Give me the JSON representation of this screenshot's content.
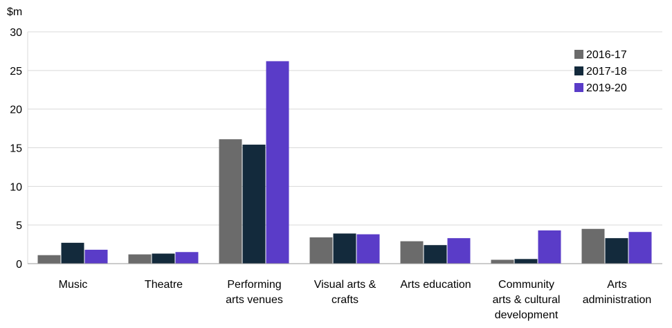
{
  "chart_data": {
    "type": "bar",
    "ylabel": "$m",
    "ylim": [
      0,
      30
    ],
    "yticks": [
      0,
      5,
      10,
      15,
      20,
      25,
      30
    ],
    "grid": true,
    "legend_position": "top-right",
    "categories": [
      "Music",
      "Theatre",
      "Performing arts venues",
      "Visual arts & crafts",
      "Arts education",
      "Community arts & cultural development",
      "Arts administration"
    ],
    "category_lines": [
      [
        "Music"
      ],
      [
        "Theatre"
      ],
      [
        "Performing",
        "arts venues"
      ],
      [
        "Visual arts &",
        "crafts"
      ],
      [
        "Arts education"
      ],
      [
        "Community",
        "arts & cultural",
        "development"
      ],
      [
        "Arts",
        "administration"
      ]
    ],
    "series": [
      {
        "name": "2016-17",
        "color": "#6b6b6b",
        "values": [
          1.1,
          1.2,
          16.1,
          3.4,
          2.9,
          0.5,
          4.5
        ]
      },
      {
        "name": "2017-18",
        "color": "#132a3c",
        "values": [
          2.7,
          1.3,
          15.4,
          3.9,
          2.4,
          0.6,
          3.3
        ]
      },
      {
        "name": "2019-20",
        "color": "#5a3cc8",
        "values": [
          1.8,
          1.5,
          26.2,
          3.8,
          3.3,
          4.3,
          4.1
        ]
      }
    ]
  }
}
